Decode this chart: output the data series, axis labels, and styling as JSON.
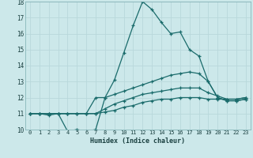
{
  "xlabel": "Humidex (Indice chaleur)",
  "xlim": [
    -0.5,
    23.5
  ],
  "ylim": [
    10,
    18
  ],
  "xticks": [
    0,
    1,
    2,
    3,
    4,
    5,
    6,
    7,
    8,
    9,
    10,
    11,
    12,
    13,
    14,
    15,
    16,
    17,
    18,
    19,
    20,
    21,
    22,
    23
  ],
  "yticks": [
    10,
    11,
    12,
    13,
    14,
    15,
    16,
    17,
    18
  ],
  "bg_color": "#cce8ea",
  "grid_color": "#b8d8db",
  "line_color": "#1a6b6b",
  "line1_x": [
    0,
    1,
    2,
    3,
    4,
    5,
    6,
    7,
    8,
    9,
    10,
    11,
    12,
    13,
    14,
    15,
    16,
    17,
    18,
    19,
    20,
    21,
    22,
    23
  ],
  "line1_y": [
    11,
    11,
    11,
    11,
    9.9,
    10,
    9.9,
    10,
    12,
    13.1,
    14.8,
    16.5,
    18,
    17.5,
    16.7,
    16,
    16.1,
    15,
    14.6,
    13,
    12,
    11.8,
    11.8,
    11.9
  ],
  "line2_x": [
    0,
    1,
    2,
    3,
    4,
    5,
    6,
    7,
    8,
    9,
    10,
    11,
    12,
    13,
    14,
    15,
    16,
    17,
    18,
    19,
    20,
    21,
    22,
    23
  ],
  "line2_y": [
    11,
    11,
    10.9,
    11,
    11,
    11,
    11,
    12,
    12,
    12.2,
    12.4,
    12.6,
    12.8,
    13.0,
    13.2,
    13.4,
    13.5,
    13.6,
    13.5,
    13.0,
    12,
    11.8,
    11.8,
    11.9
  ],
  "line3_x": [
    0,
    1,
    2,
    3,
    4,
    5,
    6,
    7,
    8,
    9,
    10,
    11,
    12,
    13,
    14,
    15,
    16,
    17,
    18,
    19,
    20,
    21,
    22,
    23
  ],
  "line3_y": [
    11,
    11,
    11,
    11,
    11,
    11,
    11,
    11,
    11.3,
    11.6,
    11.8,
    12.0,
    12.2,
    12.3,
    12.4,
    12.5,
    12.6,
    12.6,
    12.6,
    12.3,
    12.1,
    11.9,
    11.9,
    12.0
  ],
  "line4_x": [
    0,
    1,
    2,
    3,
    4,
    5,
    6,
    7,
    8,
    9,
    10,
    11,
    12,
    13,
    14,
    15,
    16,
    17,
    18,
    19,
    20,
    21,
    22,
    23
  ],
  "line4_y": [
    11,
    11,
    11,
    11,
    11,
    11,
    11,
    11,
    11.1,
    11.2,
    11.4,
    11.5,
    11.7,
    11.8,
    11.9,
    11.9,
    12.0,
    12.0,
    12.0,
    11.9,
    11.9,
    11.9,
    11.9,
    12.0
  ]
}
